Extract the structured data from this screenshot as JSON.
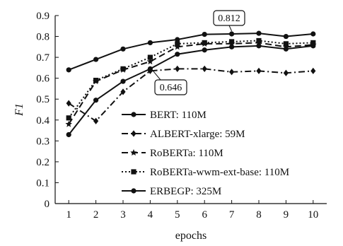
{
  "chart_data": {
    "type": "line",
    "title": "",
    "xlabel": "epochs",
    "ylabel": "F1",
    "x": [
      1,
      2,
      3,
      4,
      5,
      6,
      7,
      8,
      9,
      10
    ],
    "xlim": [
      0.5,
      10.5
    ],
    "ylim": [
      0,
      0.9
    ],
    "yticks": [
      "0",
      "0.1",
      "0.2",
      "0.3",
      "0.4",
      "0.5",
      "0.6",
      "0.7",
      "0.8",
      "0.9"
    ],
    "xticks": [
      "1",
      "2",
      "3",
      "4",
      "5",
      "6",
      "7",
      "8",
      "9",
      "10"
    ],
    "grid": false,
    "legend_position": "center-right",
    "series": [
      {
        "name": "BERT: 110M",
        "style": "solid",
        "marker": "circle",
        "values": [
          0.33,
          0.495,
          0.585,
          0.645,
          0.715,
          0.735,
          0.75,
          0.755,
          0.74,
          0.755
        ]
      },
      {
        "name": "ALBERT-xlarge: 59M",
        "style": "dashdot",
        "marker": "diamond",
        "values": [
          0.48,
          0.395,
          0.535,
          0.635,
          0.645,
          0.645,
          0.63,
          0.635,
          0.625,
          0.635
        ]
      },
      {
        "name": "RoBERTa: 110M",
        "style": "dashed",
        "marker": "star",
        "values": [
          0.38,
          0.585,
          0.64,
          0.68,
          0.75,
          0.765,
          0.765,
          0.77,
          0.75,
          0.76
        ]
      },
      {
        "name": "RoBERTa-wwm-ext-base: 110M",
        "style": "dotted",
        "marker": "square",
        "values": [
          0.41,
          0.59,
          0.645,
          0.7,
          0.765,
          0.77,
          0.775,
          0.78,
          0.765,
          0.77
        ]
      },
      {
        "name": "ERBEGP: 325M",
        "style": "solid",
        "marker": "circle",
        "values": [
          0.64,
          0.69,
          0.74,
          0.77,
          0.785,
          0.81,
          0.812,
          0.815,
          0.8,
          0.812
        ]
      }
    ],
    "annotations": [
      {
        "text": "0.812",
        "x": 7,
        "y": 0.812
      },
      {
        "text": "0.646",
        "x": 4,
        "y": 0.646
      }
    ]
  }
}
